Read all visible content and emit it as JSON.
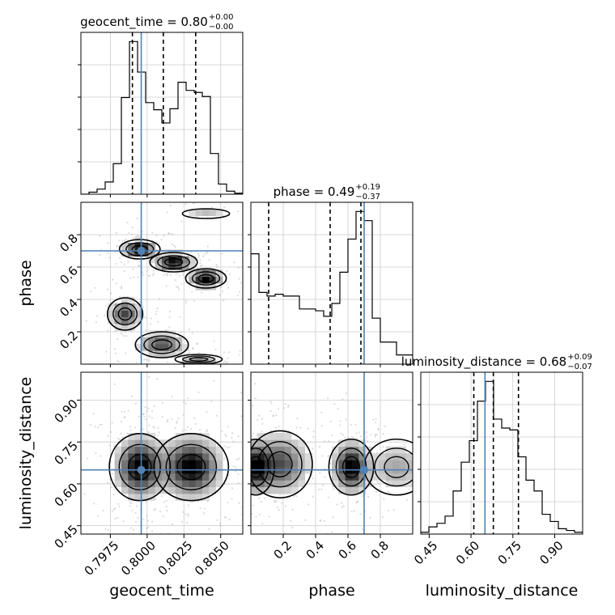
{
  "chart_data": {
    "type": "corner",
    "parameters": [
      "geocent_time",
      "phase",
      "luminosity_distance"
    ],
    "truths": {
      "geocent_time": 0.7996,
      "phase": 0.7,
      "luminosity_distance": 0.65
    },
    "truth_color": "#4f81b5",
    "titles": [
      {
        "name": "geocent_time",
        "median": "0.80",
        "plus": "+0.00",
        "minus": "−0.00"
      },
      {
        "name": "phase",
        "median": "0.49",
        "plus": "+0.19",
        "minus": "−0.37"
      },
      {
        "name": "luminosity_distance",
        "median": "0.68",
        "plus": "+0.09",
        "minus": "−0.07"
      }
    ],
    "xlabels": [
      "geocent_time",
      "phase",
      "luminosity_distance"
    ],
    "ylabels": [
      "phase",
      "luminosity_distance"
    ],
    "axes": {
      "geocent_time": {
        "range": [
          0.7955,
          0.8065
        ],
        "ticks": [
          0.7975,
          0.8,
          0.8025,
          0.805
        ],
        "tick_labels": [
          "0.7975",
          "0.8000",
          "0.8025",
          "0.8050"
        ]
      },
      "phase": {
        "range": [
          0.0,
          1.0
        ],
        "ticks": [
          0.2,
          0.4,
          0.6,
          0.8
        ],
        "tick_labels": [
          "0.2",
          "0.4",
          "0.6",
          "0.8"
        ]
      },
      "luminosity_distance": {
        "range": [
          0.42,
          1.0
        ],
        "ticks": [
          0.45,
          0.6,
          0.75,
          0.9
        ],
        "tick_labels": [
          "0.45",
          "0.60",
          "0.75",
          "0.90"
        ]
      }
    },
    "histograms": {
      "geocent_time": {
        "bin_edges": [
          0.7955,
          0.79605,
          0.7966,
          0.79715,
          0.7977,
          0.79825,
          0.7988,
          0.79935,
          0.7999,
          0.80045,
          0.801,
          0.80155,
          0.8021,
          0.80265,
          0.8032,
          0.80375,
          0.8043,
          0.80485,
          0.8054,
          0.80595,
          0.8065
        ],
        "counts": [
          0,
          2,
          5,
          12,
          30,
          95,
          150,
          120,
          90,
          83,
          70,
          84,
          110,
          102,
          100,
          96,
          40,
          10,
          3,
          1
        ],
        "quantiles": [
          0.799,
          0.8011,
          0.8033
        ]
      },
      "phase": {
        "bin_edges": [
          0.0,
          0.05,
          0.1,
          0.15,
          0.2,
          0.25,
          0.3,
          0.35,
          0.4,
          0.45,
          0.5,
          0.55,
          0.6,
          0.65,
          0.7,
          0.75,
          0.8,
          0.85,
          0.9,
          0.95,
          1.0
        ],
        "counts": [
          0.6,
          0.39,
          0.37,
          0.38,
          0.37,
          0.37,
          0.3,
          0.3,
          0.29,
          0.26,
          0.33,
          0.5,
          0.68,
          0.83,
          0.78,
          0.25,
          0.12,
          0.12,
          0.05,
          0.05
        ],
        "quantiles": [
          0.11,
          0.49,
          0.68
        ]
      },
      "luminosity_distance": {
        "bin_edges": [
          0.42,
          0.449,
          0.478,
          0.507,
          0.536,
          0.565,
          0.594,
          0.623,
          0.652,
          0.681,
          0.71,
          0.739,
          0.768,
          0.797,
          0.826,
          0.855,
          0.884,
          0.913,
          0.942,
          0.971,
          1.0
        ],
        "counts": [
          1,
          4,
          6,
          10,
          24,
          40,
          52,
          74,
          85,
          64,
          59,
          58,
          43,
          30,
          24,
          11,
          7,
          3,
          2,
          1
        ],
        "quantiles": [
          0.61,
          0.68,
          0.77
        ]
      }
    },
    "clusters": {
      "phase_vs_geocent_time": [
        {
          "x": 0.7995,
          "y": 0.71,
          "sx": 0.0006,
          "sy": 0.03,
          "w": 3
        },
        {
          "x": 0.8018,
          "y": 0.63,
          "sx": 0.0007,
          "sy": 0.03,
          "w": 3
        },
        {
          "x": 0.804,
          "y": 0.53,
          "sx": 0.0006,
          "sy": 0.03,
          "w": 3
        },
        {
          "x": 0.7985,
          "y": 0.31,
          "sx": 0.0006,
          "sy": 0.05,
          "w": 2
        },
        {
          "x": 0.801,
          "y": 0.12,
          "sx": 0.0009,
          "sy": 0.04,
          "w": 2
        },
        {
          "x": 0.8035,
          "y": 0.03,
          "sx": 0.0008,
          "sy": 0.015,
          "w": 1.5
        },
        {
          "x": 0.804,
          "y": 0.93,
          "sx": 0.0008,
          "sy": 0.015,
          "w": 0.8
        }
      ],
      "luminosity_distance_vs_geocent_time": [
        {
          "x": 0.7995,
          "y": 0.66,
          "sx": 0.0009,
          "sy": 0.06,
          "w": 3
        },
        {
          "x": 0.803,
          "y": 0.66,
          "sx": 0.0011,
          "sy": 0.06,
          "w": 3
        }
      ],
      "luminosity_distance_vs_phase": [
        {
          "x": 0.03,
          "y": 0.66,
          "sx": 0.05,
          "sy": 0.05,
          "w": 2.5
        },
        {
          "x": 0.18,
          "y": 0.67,
          "sx": 0.1,
          "sy": 0.06,
          "w": 2
        },
        {
          "x": 0.62,
          "y": 0.66,
          "sx": 0.06,
          "sy": 0.05,
          "w": 3
        },
        {
          "x": 0.9,
          "y": 0.66,
          "sx": 0.1,
          "sy": 0.05,
          "w": 1
        }
      ]
    },
    "grid": true
  }
}
